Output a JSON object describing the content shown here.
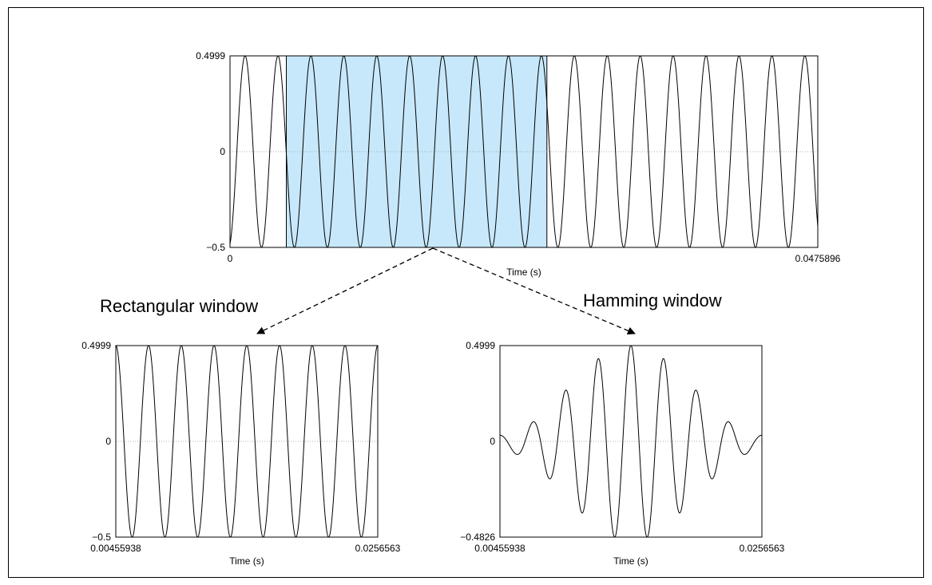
{
  "chart_data": [
    {
      "id": "original",
      "type": "line",
      "xlabel": "Time (s)",
      "xlim": [
        0,
        0.0475896
      ],
      "ylim": [
        -0.5,
        0.4999
      ],
      "x_ticks": [
        "0",
        "0.0475896"
      ],
      "y_ticks": [
        "0.4999",
        "0",
        "−0.5"
      ],
      "signal": {
        "kind": "sine",
        "cycles": 17.85,
        "phase": -1.3,
        "amplitude": 0.5
      },
      "selection": {
        "x0": 0.00455938,
        "x1": 0.0256563,
        "fill": "#c7e8fb"
      },
      "grid": false
    },
    {
      "id": "rectangular",
      "type": "line",
      "title": "Rectangular window",
      "xlabel": "Time (s)",
      "xlim": [
        0.00455938,
        0.0256563
      ],
      "ylim": [
        -0.5,
        0.4999
      ],
      "x_ticks": [
        "0.00455938",
        "0.0256563"
      ],
      "y_ticks": [
        "0.4999",
        "0",
        "−0.5"
      ],
      "signal": {
        "kind": "sine",
        "cycles": 8.0,
        "phase": 1.57,
        "amplitude": 0.5
      },
      "window": "rectangular",
      "grid": false
    },
    {
      "id": "hamming",
      "type": "line",
      "title": "Hamming window",
      "xlabel": "Time (s)",
      "xlim": [
        0.00455938,
        0.0256563
      ],
      "ylim": [
        -0.4826,
        0.4999
      ],
      "x_ticks": [
        "0.00455938",
        "0.0256563"
      ],
      "y_ticks": [
        "0.4999",
        "0",
        "−0.4826"
      ],
      "signal": {
        "kind": "sine",
        "cycles": 8.0,
        "phase": 1.57,
        "amplitude": 0.5
      },
      "window": "hamming",
      "grid": false
    }
  ],
  "colors": {
    "line": "#000000",
    "zero_line": "#999999",
    "selection": "#c7e8fb"
  }
}
